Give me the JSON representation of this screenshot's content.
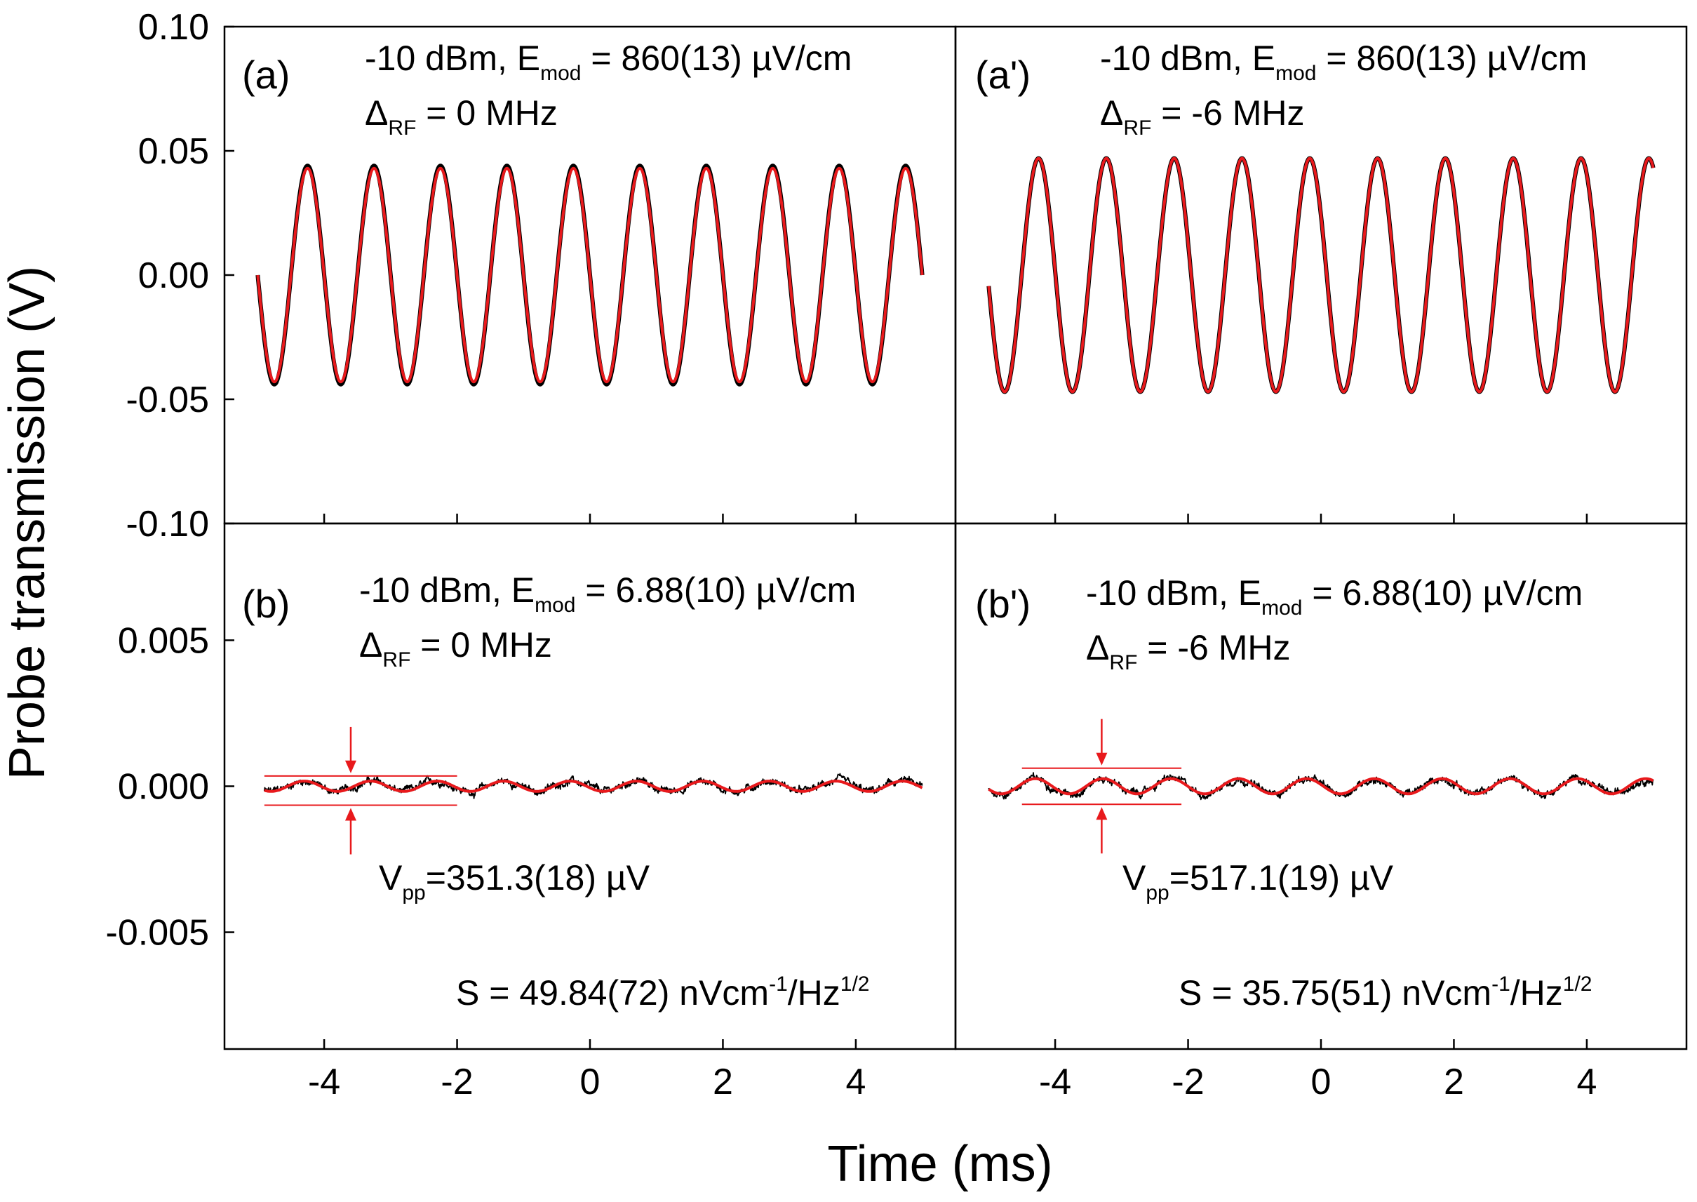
{
  "figure": {
    "xlabel": "Time (ms)",
    "ylabel": "Probe transmission (V)"
  },
  "chart_data": [
    {
      "panel": "(a)",
      "type": "line",
      "xlim": [
        -5.5,
        5.5
      ],
      "ylim": [
        -0.1,
        0.1
      ],
      "yticks": [
        "0.10",
        "0.05",
        "0.00",
        "-0.05",
        "-0.10"
      ],
      "ytick_values": [
        0.1,
        0.05,
        0.0,
        -0.05,
        -0.1
      ],
      "xticks": [],
      "xtick_values": [],
      "ann": {
        "line1_pre": "-10 dBm, E",
        "line1_sub": "mod",
        "line1_post": " = 860(13) µV/cm",
        "line2_pre": "Δ",
        "line2_sub": "RF",
        "line2_post": " = 0 MHz"
      },
      "series": [
        {
          "name": "data",
          "color": "#000000",
          "freq_khz": 1.0,
          "amplitude": 0.044,
          "phase_peak_ms": -4.25,
          "x_range": [
            -5.0,
            5.0
          ]
        },
        {
          "name": "fit",
          "color": "#e8191c",
          "freq_khz": 1.0,
          "amplitude": 0.043,
          "phase_peak_ms": -4.25,
          "x_range": [
            -5.0,
            5.0
          ]
        }
      ]
    },
    {
      "panel": "(a')",
      "type": "line",
      "xlim": [
        -5.5,
        5.5
      ],
      "ylim": [
        -0.1,
        0.1
      ],
      "yticks": [],
      "ytick_values": [],
      "xticks": [],
      "xtick_values": [],
      "ann": {
        "line1_pre": "-10 dBm, E",
        "line1_sub": "mod",
        "line1_post": " = 860(13) µV/cm",
        "line2_pre": "Δ",
        "line2_sub": "RF",
        "line2_post": " = -6 MHz"
      },
      "series": [
        {
          "name": "data",
          "color": "#000000",
          "freq_khz": 0.98,
          "amplitude": 0.047,
          "phase_peak_ms": -4.25,
          "x_range": [
            -5.0,
            5.0
          ]
        },
        {
          "name": "fit",
          "color": "#e8191c",
          "freq_khz": 0.98,
          "amplitude": 0.047,
          "phase_peak_ms": -4.25,
          "x_range": [
            -5.0,
            5.0
          ]
        }
      ]
    },
    {
      "panel": "(b)",
      "type": "line",
      "xlim": [
        -5.5,
        5.5
      ],
      "ylim": [
        -0.009,
        0.009
      ],
      "yticks": [
        "0.005",
        "0.000",
        "-0.005"
      ],
      "ytick_values": [
        0.005,
        0.0,
        -0.005
      ],
      "xticks": [
        "-4",
        "-2",
        "0",
        "2",
        "4"
      ],
      "xtick_values": [
        -4,
        -2,
        0,
        2,
        4
      ],
      "ann": {
        "line1_pre": "-10 dBm, E",
        "line1_sub": "mod",
        "line1_post": " = 6.88(10) µV/cm",
        "line2_pre": "Δ",
        "line2_sub": "RF",
        "line2_post": " = 0 MHz"
      },
      "vpp": {
        "pre": "V",
        "sub": "pp",
        "post": "=351.3(18) µV"
      },
      "sens": {
        "pre": "S = 49.84(72) nVcm",
        "sup1": "-1",
        "mid": "/Hz",
        "sup2": "1/2"
      },
      "vpp_band": [
        0.00035,
        -0.00065
      ],
      "band_x": [
        -4.9,
        -2.0
      ],
      "arrow_x": -3.6,
      "series": [
        {
          "name": "data",
          "color": "#000000",
          "freq_khz": 1.0,
          "amplitude": 0.00018,
          "phase_peak_ms": -4.3,
          "x_range": [
            -4.9,
            5.0
          ],
          "noise": 0.0003
        },
        {
          "name": "fit",
          "color": "#e8191c",
          "freq_khz": 1.0,
          "amplitude": 0.000176,
          "phase_peak_ms": -4.3,
          "x_range": [
            -4.9,
            5.0
          ]
        }
      ]
    },
    {
      "panel": "(b')",
      "type": "line",
      "xlim": [
        -5.5,
        5.5
      ],
      "ylim": [
        -0.009,
        0.009
      ],
      "yticks": [],
      "ytick_values": [],
      "xticks": [
        "-4",
        "-2",
        "0",
        "2",
        "4"
      ],
      "xtick_values": [
        -4,
        -2,
        0,
        2,
        4
      ],
      "ann": {
        "line1_pre": "-10 dBm, E",
        "line1_sub": "mod",
        "line1_post": " = 6.88(10) µV/cm",
        "line2_pre": "Δ",
        "line2_sub": "RF",
        "line2_post": " = -6 MHz"
      },
      "vpp": {
        "pre": "V",
        "sub": "pp",
        "post": "=517.1(19) µV"
      },
      "sens": {
        "pre": "S = 35.75(51) nVcm",
        "sup1": "-1",
        "mid": "/Hz",
        "sup2": "1/2"
      },
      "vpp_band": [
        0.00062,
        -0.00062
      ],
      "band_x": [
        -4.5,
        -2.1
      ],
      "arrow_x": -3.3,
      "series": [
        {
          "name": "data",
          "color": "#000000",
          "freq_khz": 0.98,
          "amplitude": 0.00026,
          "phase_peak_ms": -4.3,
          "x_range": [
            -5.0,
            5.0
          ],
          "noise": 0.0003
        },
        {
          "name": "fit",
          "color": "#e8191c",
          "freq_khz": 0.98,
          "amplitude": 0.000259,
          "phase_peak_ms": -4.3,
          "x_range": [
            -5.0,
            5.0
          ]
        }
      ]
    }
  ]
}
